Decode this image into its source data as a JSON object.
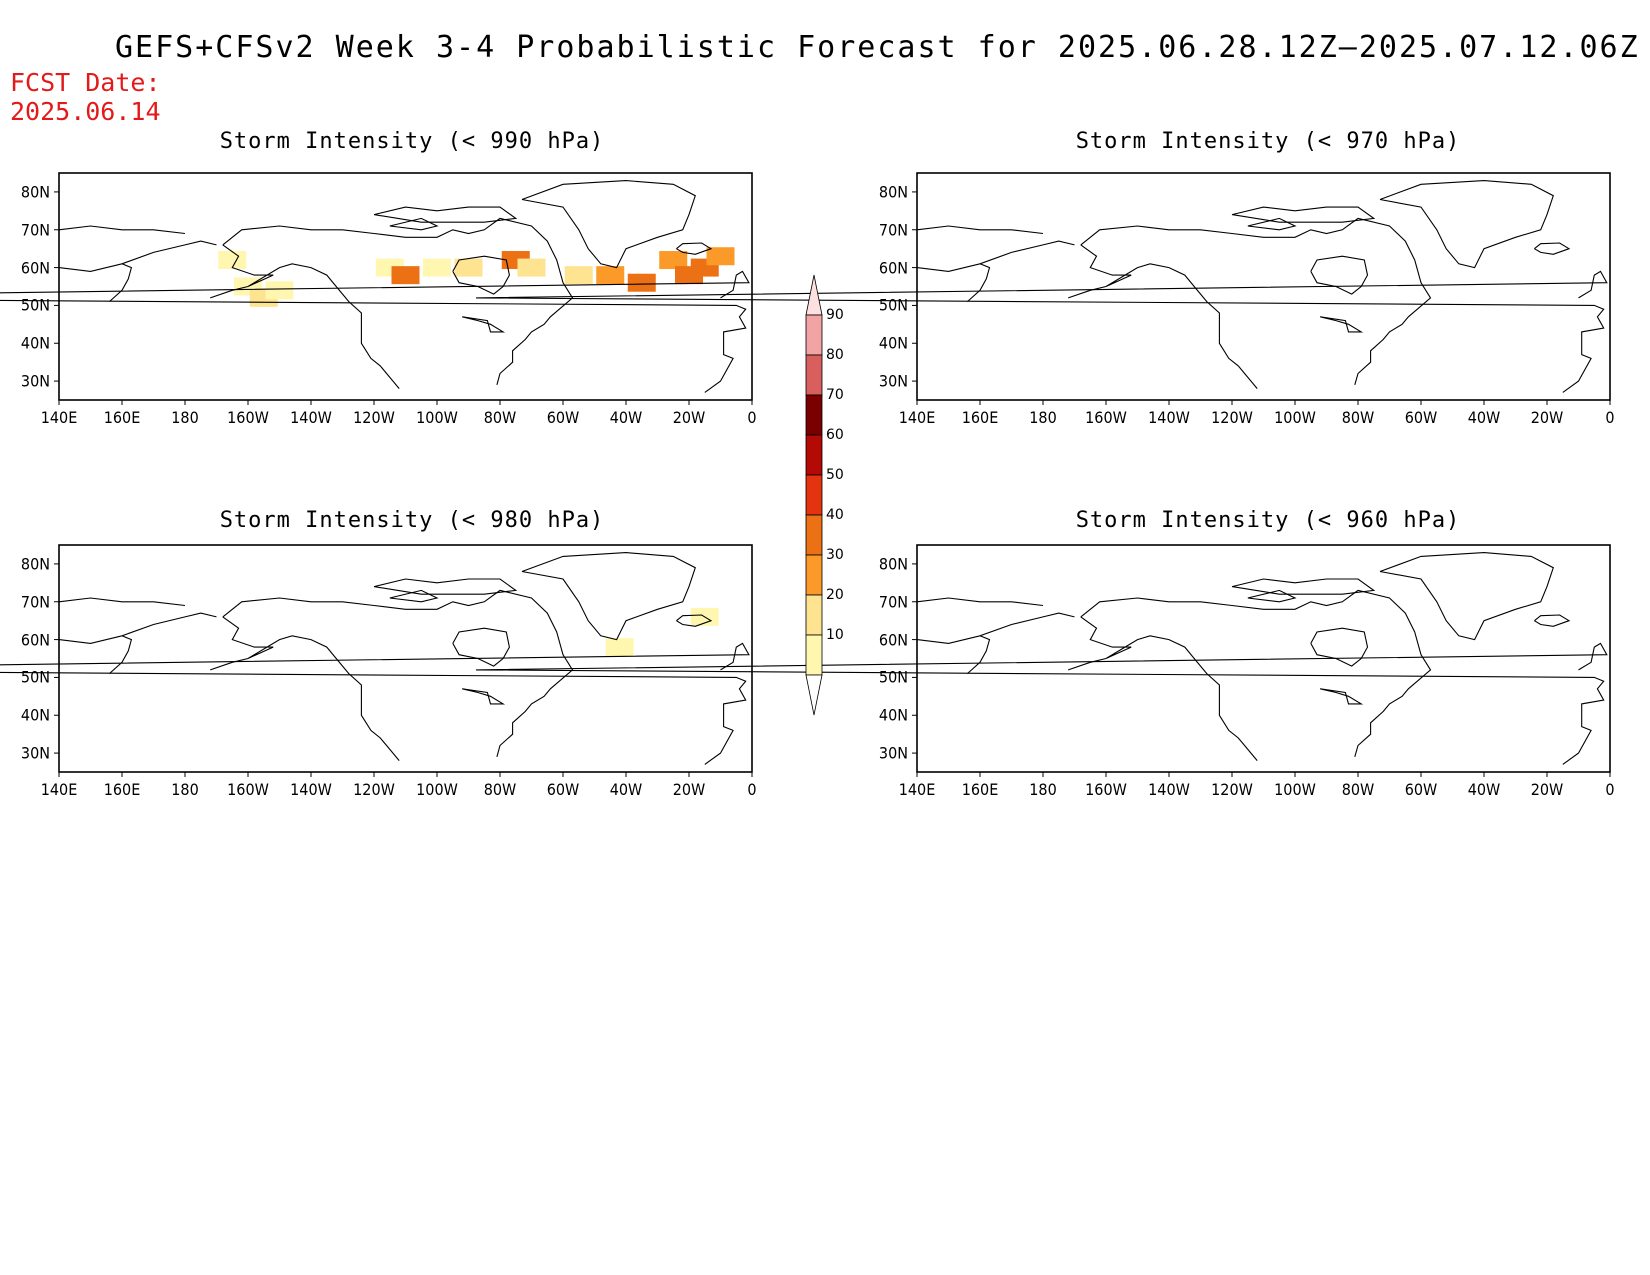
{
  "title": "GEFS+CFSv2 Week 3-4 Probabilistic Forecast for 2025.06.28.12Z–2025.07.12.06Z",
  "fcst_date_label": "FCST Date:",
  "fcst_date_value": "2025.06.14",
  "colors": {
    "fcst": "#e21a1a",
    "outline": "#000000"
  },
  "panels": [
    {
      "title": "Storm Intensity (< 990 hPa)"
    },
    {
      "title": "Storm Intensity (< 970 hPa)"
    },
    {
      "title": "Storm Intensity (< 980 hPa)"
    },
    {
      "title": "Storm Intensity (< 960 hPa)"
    }
  ],
  "lat_labels": [
    "80N",
    "70N",
    "60N",
    "50N",
    "40N",
    "30N"
  ],
  "lon_labels": [
    "140E",
    "160E",
    "180",
    "160W",
    "140W",
    "120W",
    "100W",
    "80W",
    "60W",
    "40W",
    "20W",
    "0"
  ],
  "colorbar": {
    "levels": [
      "10",
      "20",
      "30",
      "40",
      "50",
      "60",
      "70",
      "80",
      "90"
    ],
    "colors": [
      "#fff7b0",
      "#fee391",
      "#fb9a29",
      "#ec7014",
      "#e3340f",
      "#b30a05",
      "#7a0000",
      "#d95f5f",
      "#f2a4a4",
      "#fde0e0"
    ]
  },
  "chart_data": [
    {
      "type": "heatmap",
      "title": "Storm Intensity (< 990 hPa)",
      "x_range": [
        "140E",
        "0"
      ],
      "y_range": [
        "25N",
        "85N"
      ],
      "units": "%",
      "cells": [
        {
          "lon": -165,
          "lat": 62,
          "v": 15
        },
        {
          "lon": -160,
          "lat": 55,
          "v": 15
        },
        {
          "lon": -155,
          "lat": 52,
          "v": 25
        },
        {
          "lon": -150,
          "lat": 54,
          "v": 15
        },
        {
          "lon": -115,
          "lat": 60,
          "v": 15
        },
        {
          "lon": -110,
          "lat": 58,
          "v": 45
        },
        {
          "lon": -100,
          "lat": 60,
          "v": 15
        },
        {
          "lon": -90,
          "lat": 60,
          "v": 25
        },
        {
          "lon": -75,
          "lat": 62,
          "v": 45
        },
        {
          "lon": -70,
          "lat": 60,
          "v": 25
        },
        {
          "lon": -55,
          "lat": 58,
          "v": 25
        },
        {
          "lon": -45,
          "lat": 58,
          "v": 35
        },
        {
          "lon": -35,
          "lat": 56,
          "v": 45
        },
        {
          "lon": -25,
          "lat": 62,
          "v": 35
        },
        {
          "lon": -20,
          "lat": 58,
          "v": 45
        },
        {
          "lon": -15,
          "lat": 60,
          "v": 45
        },
        {
          "lon": -10,
          "lat": 63,
          "v": 35
        }
      ]
    },
    {
      "type": "heatmap",
      "title": "Storm Intensity (< 970 hPa)",
      "x_range": [
        "140E",
        "0"
      ],
      "y_range": [
        "25N",
        "85N"
      ],
      "units": "%",
      "cells": []
    },
    {
      "type": "heatmap",
      "title": "Storm Intensity (< 980 hPa)",
      "x_range": [
        "140E",
        "0"
      ],
      "y_range": [
        "25N",
        "85N"
      ],
      "units": "%",
      "cells": [
        {
          "lon": -15,
          "lat": 66,
          "v": 15
        },
        {
          "lon": -42,
          "lat": 58,
          "v": 15
        }
      ]
    },
    {
      "type": "heatmap",
      "title": "Storm Intensity (< 960 hPa)",
      "x_range": [
        "140E",
        "0"
      ],
      "y_range": [
        "25N",
        "85N"
      ],
      "units": "%",
      "cells": []
    }
  ]
}
